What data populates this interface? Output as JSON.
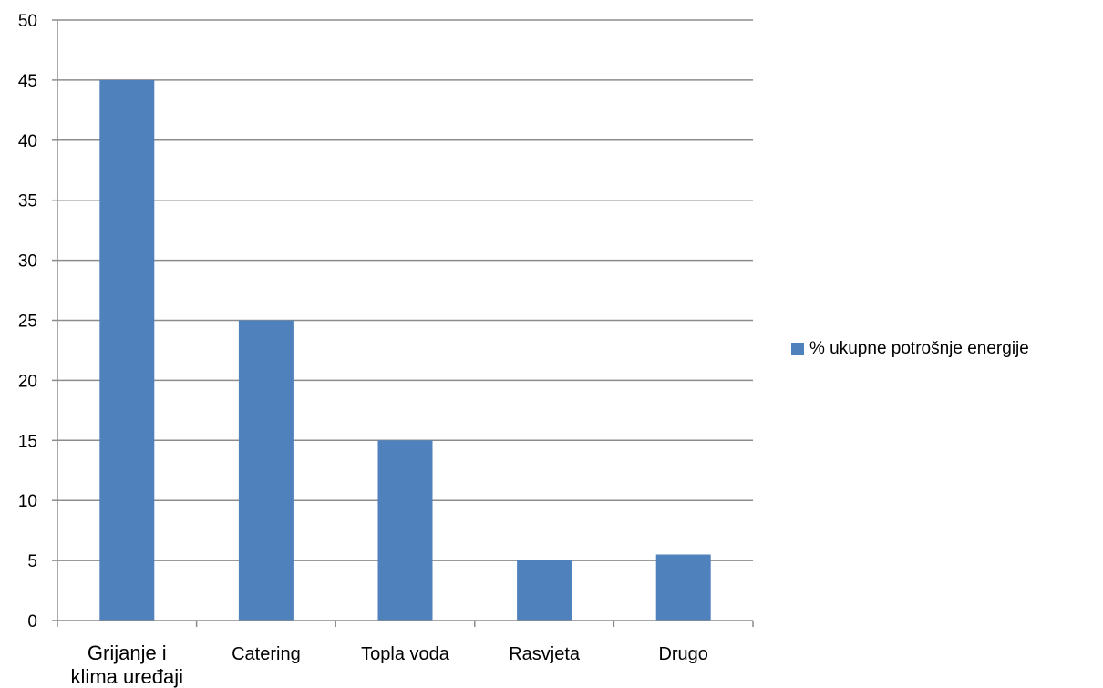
{
  "chart_data": {
    "type": "bar",
    "categories": [
      "Grijanje i klima uređaji",
      "Catering",
      "Topla voda",
      "Rasvjeta",
      "Drugo"
    ],
    "category_label_lines": [
      [
        "Grijanje i",
        "klima uređaji"
      ],
      [
        "Catering"
      ],
      [
        "Topla voda"
      ],
      [
        "Rasvjeta"
      ],
      [
        "Drugo"
      ]
    ],
    "series": [
      {
        "name": "% ukupne potrošnje energije",
        "values": [
          45,
          25,
          15,
          5,
          5.5
        ],
        "color": "#4f81bd"
      }
    ],
    "ylim": [
      0,
      50
    ],
    "yticks": [
      "0",
      "5",
      "10",
      "15",
      "20",
      "25",
      "30",
      "35",
      "40",
      "45",
      "50"
    ],
    "title": "",
    "xlabel": "",
    "ylabel": "",
    "grid": true,
    "legend_position": "right"
  },
  "colors": {
    "bar": "#4f81bd",
    "grid": "#8c8c8c",
    "axis": "#8c8c8c"
  }
}
